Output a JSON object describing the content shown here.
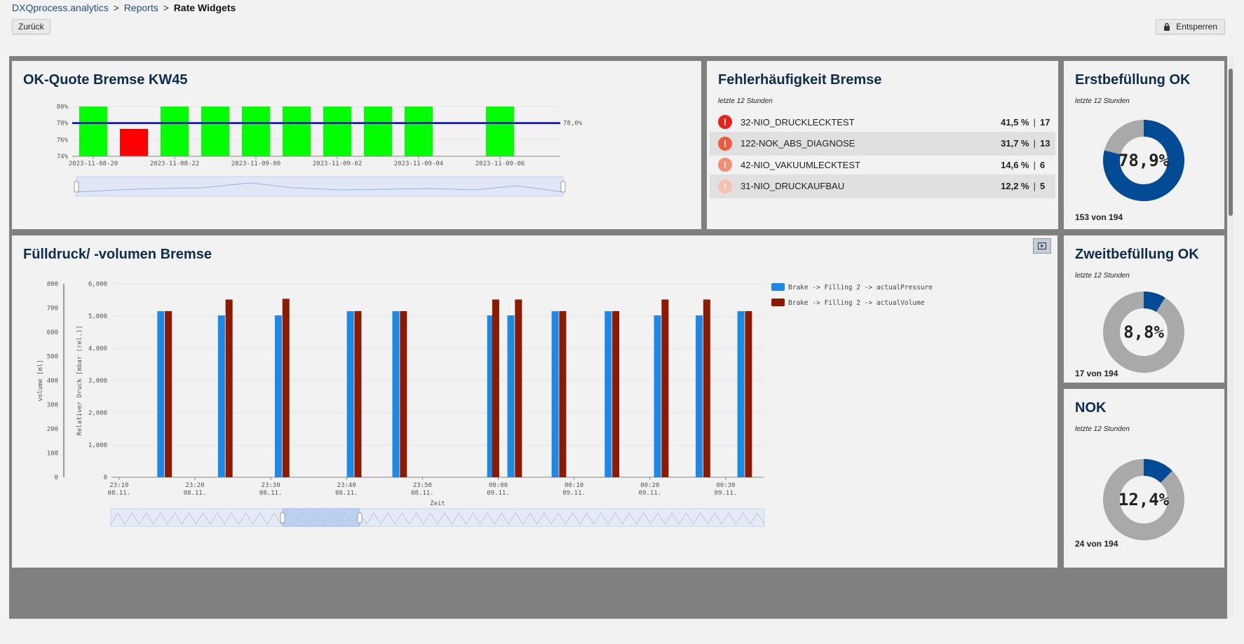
{
  "breadcrumb": {
    "home": "DXQprocess.analytics",
    "reports": "Reports",
    "current": "Rate Widgets",
    "sep": ">"
  },
  "toolbar": {
    "back_label": "Zurück",
    "unlock_label": "Entsperren"
  },
  "ok_quote": {
    "title": "OK-Quote Bremse KW45",
    "target_label": "78,0%",
    "colors": {
      "ok": "#00ff00",
      "nok": "#ff0000",
      "target": "#0000cc"
    }
  },
  "fehler": {
    "title": "Fehlerhäufigkeit Bremse",
    "subtitle": "letzte 12 Stunden",
    "items": [
      {
        "name": "32-NIO_DRUCKLECKTEST",
        "pct": "41,5 %",
        "count": "17",
        "color": "#e5251a"
      },
      {
        "name": "122-NOK_ABS_DIAGNOSE",
        "pct": "31,7 %",
        "count": "13",
        "color": "#f05a3c"
      },
      {
        "name": "42-NIO_VAKUUMLECKTEST",
        "pct": "14,6 %",
        "count": "6",
        "color": "#f58c74"
      },
      {
        "name": "31-NIO_DRUCKAUFBAU",
        "pct": "12,2 %",
        "count": "5",
        "color": "#fbbfae"
      }
    ],
    "separator": "|"
  },
  "erst": {
    "title": "Erstbefüllung OK",
    "subtitle": "letzte 12 Stunden",
    "value": "78,9%",
    "fraction": 0.789,
    "count": "153 von 194",
    "color": "#004b93",
    "rest_color": "#a9a9a9"
  },
  "zweit": {
    "title": "Zweitbefüllung OK",
    "subtitle": "letzte 12 Stunden",
    "value": "8,8%",
    "fraction": 0.088,
    "count": "17 von 194",
    "color": "#004b93",
    "rest_color": "#a9a9a9"
  },
  "nok": {
    "title": "NOK",
    "subtitle": "letzte 12 Stunden",
    "value": "12,4%",
    "fraction": 0.124,
    "count": "24 von 194",
    "color": "#004b93",
    "rest_color": "#a9a9a9"
  },
  "fuell": {
    "title": "Fülldruck/ -volumen Bremse",
    "legend": [
      "Brake -> Filling 2 -> actualPressure",
      "Brake -> Filling 2 -> actualVolume"
    ],
    "colors": {
      "pressure": "#1e88e5",
      "volume": "#8b1a00"
    }
  },
  "chart_data": [
    {
      "type": "bar",
      "title": "OK-Quote Bremse KW45",
      "x": [
        "2023-11-08-20",
        "2023-11-08-21",
        "2023-11-08-22",
        "2023-11-08-23",
        "2023-11-09-00",
        "2023-11-09-01",
        "2023-11-09-02",
        "2023-11-09-03",
        "2023-11-09-04",
        "2023-11-09-05",
        "2023-11-09-06"
      ],
      "values": [
        80,
        77.3,
        80,
        80,
        80,
        80,
        80,
        80,
        80,
        null,
        80
      ],
      "x_ticks": [
        "2023-11-08-20",
        "2023-11-08-22",
        "2023-11-09-00",
        "2023-11-09-02",
        "2023-11-09-04",
        "2023-11-09-06"
      ],
      "y_ticks": [
        "74%",
        "76%",
        "78%",
        "80%"
      ],
      "ylim": [
        74,
        80
      ],
      "target": 78.0,
      "grid": true,
      "legend": "none"
    },
    {
      "type": "bar",
      "title": "Fülldruck/ -volumen Bremse",
      "xlabel": "Zeit",
      "ylabel": "Relativer Druck [mbar (rel.)]",
      "y2label": "volume [ml]",
      "ylim": [
        0,
        6000
      ],
      "y2lim": [
        0,
        800
      ],
      "y_ticks": [
        "0",
        "1,000",
        "2,000",
        "3,000",
        "4,000",
        "5,000",
        "6,000"
      ],
      "y2_ticks": [
        "0",
        "100",
        "200",
        "300",
        "400",
        "500",
        "600",
        "700",
        "800"
      ],
      "x_ticks": [
        {
          "time": "23:10",
          "date": "08.11."
        },
        {
          "time": "23:20",
          "date": "08.11."
        },
        {
          "time": "23:30",
          "date": "08.11."
        },
        {
          "time": "23:40",
          "date": "08.11."
        },
        {
          "time": "23:50",
          "date": "08.11."
        },
        {
          "time": "00:00",
          "date": "09.11."
        },
        {
          "time": "00:10",
          "date": "09.11."
        },
        {
          "time": "00:20",
          "date": "09.11."
        },
        {
          "time": "00:30",
          "date": "09.11."
        }
      ],
      "xlim": [
        "2023-11-08 23:09",
        "2023-11-09 00:35"
      ],
      "series": [
        {
          "name": "Brake -> Filling 2 -> actualPressure",
          "x": [
            "2023-11-08 23:15:30",
            "2023-11-08 23:23:30",
            "2023-11-08 23:31:00",
            "2023-11-08 23:40:30",
            "2023-11-08 23:46:30",
            "2023-11-08 23:59:00",
            "2023-11-09 00:01:40",
            "2023-11-09 00:07:30",
            "2023-11-09 00:14:30",
            "2023-11-09 00:21:00",
            "2023-11-09 00:26:30",
            "2023-11-09 00:32:00"
          ],
          "values": [
            5150,
            5020,
            5020,
            5150,
            5150,
            5020,
            5020,
            5150,
            5150,
            5020,
            5020,
            5150
          ]
        },
        {
          "name": "Brake -> Filling 2 -> actualVolume",
          "x": [
            "2023-11-08 23:16:30",
            "2023-11-08 23:24:30",
            "2023-11-08 23:32:00",
            "2023-11-08 23:41:30",
            "2023-11-08 23:47:30",
            "2023-11-08 23:59:40",
            "2023-11-09 00:02:40",
            "2023-11-09 00:08:30",
            "2023-11-09 00:15:30",
            "2023-11-09 00:22:00",
            "2023-11-09 00:27:30",
            "2023-11-09 00:33:00"
          ],
          "values": [
            687,
            735,
            738,
            687,
            687,
            735,
            735,
            687,
            687,
            735,
            735,
            687
          ]
        }
      ],
      "legend": "right"
    }
  ]
}
